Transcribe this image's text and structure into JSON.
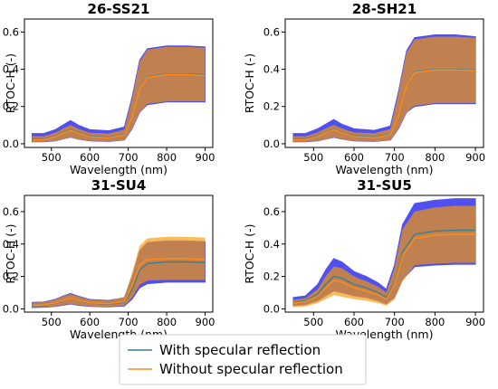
{
  "legend": [
    {
      "label": "With specular reflection",
      "color": "#3b7f93"
    },
    {
      "label": "Without specular reflection",
      "color": "#ff8c1a"
    }
  ],
  "colors": {
    "with_band": "#5050f0",
    "without_band": "#f5a623",
    "overlap_band": "#c08050"
  },
  "chart_data": [
    {
      "type": "area",
      "title": "26-SS21",
      "xlabel": "Wavelength (nm)",
      "ylabel": "RTOC-H (-)",
      "xlim": [
        430,
        920
      ],
      "ylim": [
        -0.02,
        0.67
      ],
      "xticks": [
        500,
        600,
        700,
        800,
        900
      ],
      "yticks": [
        0.0,
        0.2,
        0.4,
        0.6
      ],
      "x": [
        450,
        480,
        510,
        530,
        550,
        570,
        600,
        650,
        690,
        710,
        730,
        750,
        800,
        850,
        900
      ],
      "series": [
        {
          "name": "With specular reflection",
          "mean": [
            0.025,
            0.026,
            0.04,
            0.06,
            0.075,
            0.06,
            0.04,
            0.035,
            0.05,
            0.15,
            0.3,
            0.36,
            0.375,
            0.375,
            0.37
          ],
          "lower": [
            0.01,
            0.01,
            0.015,
            0.025,
            0.035,
            0.025,
            0.015,
            0.012,
            0.02,
            0.08,
            0.17,
            0.21,
            0.225,
            0.225,
            0.225
          ],
          "upper": [
            0.055,
            0.055,
            0.075,
            0.1,
            0.125,
            0.1,
            0.075,
            0.07,
            0.09,
            0.25,
            0.45,
            0.51,
            0.525,
            0.525,
            0.52
          ]
        },
        {
          "name": "Without specular reflection",
          "mean": [
            0.022,
            0.023,
            0.037,
            0.057,
            0.072,
            0.057,
            0.037,
            0.032,
            0.047,
            0.147,
            0.297,
            0.357,
            0.372,
            0.372,
            0.367
          ],
          "lower": [
            0.01,
            0.01,
            0.015,
            0.025,
            0.035,
            0.025,
            0.015,
            0.012,
            0.02,
            0.08,
            0.17,
            0.215,
            0.228,
            0.228,
            0.228
          ],
          "upper": [
            0.04,
            0.04,
            0.058,
            0.08,
            0.1,
            0.08,
            0.058,
            0.055,
            0.075,
            0.24,
            0.44,
            0.505,
            0.52,
            0.52,
            0.515
          ]
        }
      ]
    },
    {
      "type": "area",
      "title": "28-SH21",
      "xlabel": "Wavelength (nm)",
      "ylabel": "RTOC-H (-)",
      "xlim": [
        430,
        920
      ],
      "ylim": [
        -0.02,
        0.67
      ],
      "xticks": [
        500,
        600,
        700,
        800,
        900
      ],
      "yticks": [
        0.0,
        0.2,
        0.4,
        0.6
      ],
      "x": [
        450,
        480,
        510,
        530,
        550,
        570,
        600,
        650,
        690,
        710,
        730,
        750,
        800,
        850,
        900
      ],
      "series": [
        {
          "name": "With specular reflection",
          "mean": [
            0.025,
            0.026,
            0.042,
            0.062,
            0.078,
            0.062,
            0.042,
            0.036,
            0.052,
            0.16,
            0.32,
            0.385,
            0.4,
            0.4,
            0.395
          ],
          "lower": [
            0.01,
            0.01,
            0.015,
            0.025,
            0.035,
            0.025,
            0.015,
            0.012,
            0.02,
            0.08,
            0.17,
            0.2,
            0.215,
            0.215,
            0.215
          ],
          "upper": [
            0.055,
            0.055,
            0.08,
            0.105,
            0.13,
            0.105,
            0.08,
            0.072,
            0.095,
            0.28,
            0.5,
            0.57,
            0.585,
            0.585,
            0.575
          ]
        },
        {
          "name": "Without specular reflection",
          "mean": [
            0.022,
            0.023,
            0.039,
            0.059,
            0.075,
            0.059,
            0.039,
            0.033,
            0.049,
            0.157,
            0.317,
            0.382,
            0.397,
            0.397,
            0.392
          ],
          "lower": [
            0.01,
            0.01,
            0.015,
            0.025,
            0.035,
            0.025,
            0.015,
            0.012,
            0.02,
            0.08,
            0.17,
            0.205,
            0.218,
            0.218,
            0.218
          ],
          "upper": [
            0.04,
            0.04,
            0.06,
            0.082,
            0.1,
            0.082,
            0.06,
            0.056,
            0.078,
            0.27,
            0.49,
            0.56,
            0.575,
            0.575,
            0.568
          ]
        }
      ]
    },
    {
      "type": "area",
      "title": "31-SU4",
      "xlabel": "Wavelength (nm)",
      "ylabel": "RTOC-H (-)",
      "xlim": [
        430,
        920
      ],
      "ylim": [
        -0.02,
        0.7
      ],
      "xticks": [
        500,
        600,
        700,
        800,
        900
      ],
      "yticks": [
        0.0,
        0.2,
        0.4,
        0.6
      ],
      "x": [
        450,
        480,
        510,
        530,
        550,
        570,
        600,
        650,
        690,
        710,
        730,
        750,
        800,
        850,
        900
      ],
      "series": [
        {
          "name": "With specular reflection",
          "mean": [
            0.02,
            0.022,
            0.035,
            0.05,
            0.062,
            0.05,
            0.035,
            0.03,
            0.04,
            0.12,
            0.24,
            0.28,
            0.29,
            0.29,
            0.285
          ],
          "lower": [
            0.008,
            0.01,
            0.015,
            0.022,
            0.03,
            0.022,
            0.015,
            0.012,
            0.018,
            0.06,
            0.13,
            0.155,
            0.165,
            0.165,
            0.165
          ],
          "upper": [
            0.04,
            0.042,
            0.058,
            0.078,
            0.095,
            0.078,
            0.058,
            0.052,
            0.07,
            0.2,
            0.36,
            0.41,
            0.42,
            0.42,
            0.415
          ]
        },
        {
          "name": "Without specular reflection",
          "mean": [
            0.022,
            0.024,
            0.037,
            0.052,
            0.064,
            0.052,
            0.037,
            0.032,
            0.045,
            0.14,
            0.27,
            0.305,
            0.31,
            0.31,
            0.305
          ],
          "lower": [
            0.01,
            0.012,
            0.016,
            0.024,
            0.032,
            0.024,
            0.016,
            0.013,
            0.02,
            0.07,
            0.15,
            0.175,
            0.18,
            0.18,
            0.18
          ],
          "upper": [
            0.038,
            0.04,
            0.056,
            0.076,
            0.09,
            0.076,
            0.056,
            0.05,
            0.075,
            0.22,
            0.39,
            0.435,
            0.445,
            0.445,
            0.44
          ]
        }
      ]
    },
    {
      "type": "area",
      "title": "31-SU5",
      "xlabel": "Wavelength (nm)",
      "ylabel": "RTOC-H (-)",
      "xlim": [
        430,
        920
      ],
      "ylim": [
        -0.02,
        0.7
      ],
      "xticks": [
        500,
        600,
        700,
        800,
        900
      ],
      "yticks": [
        0.0,
        0.2,
        0.4,
        0.6
      ],
      "x": [
        450,
        480,
        510,
        530,
        550,
        570,
        600,
        630,
        660,
        680,
        700,
        720,
        750,
        800,
        850,
        900
      ],
      "series": [
        {
          "name": "With specular reflection",
          "mean": [
            0.04,
            0.05,
            0.09,
            0.15,
            0.2,
            0.19,
            0.15,
            0.13,
            0.1,
            0.07,
            0.16,
            0.35,
            0.46,
            0.48,
            0.485,
            0.485
          ],
          "lower": [
            0.02,
            0.025,
            0.05,
            0.08,
            0.11,
            0.1,
            0.08,
            0.07,
            0.05,
            0.03,
            0.07,
            0.18,
            0.26,
            0.27,
            0.275,
            0.275
          ],
          "upper": [
            0.07,
            0.08,
            0.15,
            0.24,
            0.31,
            0.29,
            0.23,
            0.2,
            0.16,
            0.12,
            0.27,
            0.52,
            0.65,
            0.67,
            0.68,
            0.68
          ]
        },
        {
          "name": "Without specular reflection",
          "mean": [
            0.035,
            0.045,
            0.08,
            0.13,
            0.175,
            0.165,
            0.13,
            0.11,
            0.085,
            0.06,
            0.15,
            0.33,
            0.435,
            0.455,
            0.46,
            0.46
          ],
          "lower": [
            0.01,
            0.015,
            0.035,
            0.06,
            0.085,
            0.075,
            0.06,
            0.05,
            0.035,
            0.02,
            0.06,
            0.17,
            0.27,
            0.28,
            0.285,
            0.285
          ],
          "upper": [
            0.055,
            0.065,
            0.12,
            0.2,
            0.26,
            0.25,
            0.2,
            0.17,
            0.135,
            0.1,
            0.25,
            0.49,
            0.6,
            0.625,
            0.635,
            0.635
          ]
        }
      ]
    }
  ]
}
